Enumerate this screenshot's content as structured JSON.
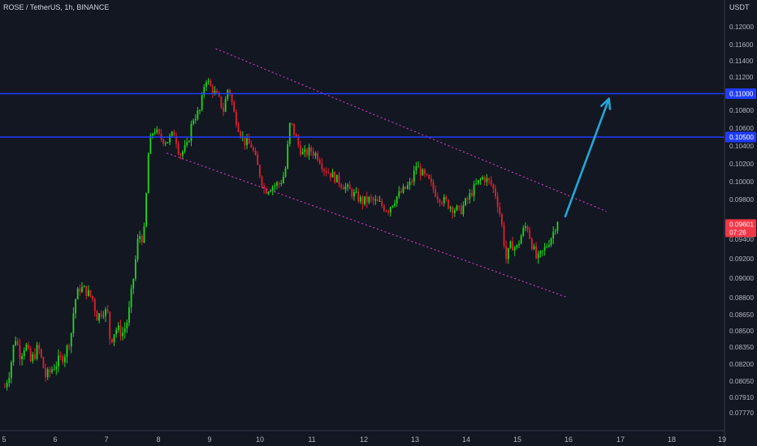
{
  "header": {
    "symbol_title": "ROSE / TetherUS, 1h, BINANCE"
  },
  "axis": {
    "currency": "USDT"
  },
  "colors": {
    "background": "#131722",
    "up": "#26a69a",
    "down": "#ef5350",
    "up_candle": "#22d61e",
    "down_candle": "#e0212e",
    "level_line": "#1f3cff",
    "channel": "#d63dc8",
    "arrow": "#22a7d6",
    "grid": "#2a2e39",
    "axis_text": "#b2b5be",
    "price_badge": "#f23645"
  },
  "chart_data": {
    "type": "candlestick",
    "title": "ROSE / TetherUS, 1h, BINANCE",
    "ylabel": "USDT",
    "x_ticks": [
      "5",
      "6",
      "7",
      "8",
      "9",
      "10",
      "11",
      "12",
      "13",
      "14",
      "15",
      "16",
      "17",
      "18",
      "19"
    ],
    "y_ticks": [
      "0.12000",
      "0.11600",
      "0.11400",
      "0.11200",
      "0.10800",
      "0.10600",
      "0.10400",
      "0.10200",
      "0.10000",
      "0.09800",
      "0.09400",
      "0.09200",
      "0.09000",
      "0.08800",
      "0.08650",
      "0.08500",
      "0.08350",
      "0.08200",
      "0.08050",
      "0.07910",
      "0.07770"
    ],
    "ylim": [
      0.0762,
      0.1215
    ],
    "grid": false,
    "levels": [
      {
        "label": "0.11000",
        "value": 0.11
      },
      {
        "label": "0.10500",
        "value": 0.105
      }
    ],
    "current_price": {
      "label": "0.09601",
      "countdown": "07:26",
      "value": 0.09601
    },
    "close_path": [
      [
        5.0,
        0.08
      ],
      [
        5.1,
        0.0815
      ],
      [
        5.2,
        0.0845
      ],
      [
        5.3,
        0.0828
      ],
      [
        5.4,
        0.0838
      ],
      [
        5.5,
        0.0822
      ],
      [
        5.65,
        0.0835
      ],
      [
        5.8,
        0.0808
      ],
      [
        5.95,
        0.0818
      ],
      [
        6.1,
        0.0825
      ],
      [
        6.2,
        0.0832
      ],
      [
        6.3,
        0.085
      ],
      [
        6.35,
        0.0875
      ],
      [
        6.45,
        0.089
      ],
      [
        6.55,
        0.0888
      ],
      [
        6.7,
        0.088
      ],
      [
        6.8,
        0.0862
      ],
      [
        6.9,
        0.087
      ],
      [
        7.0,
        0.0865
      ],
      [
        7.05,
        0.084
      ],
      [
        7.15,
        0.0852
      ],
      [
        7.3,
        0.0848
      ],
      [
        7.4,
        0.0862
      ],
      [
        7.5,
        0.09
      ],
      [
        7.6,
        0.0945
      ],
      [
        7.7,
        0.094
      ],
      [
        7.75,
        0.0985
      ],
      [
        7.8,
        0.104
      ],
      [
        7.9,
        0.106
      ],
      [
        8.0,
        0.105
      ],
      [
        8.15,
        0.1045
      ],
      [
        8.3,
        0.1055
      ],
      [
        8.4,
        0.103
      ],
      [
        8.55,
        0.104
      ],
      [
        8.65,
        0.107
      ],
      [
        8.8,
        0.108
      ],
      [
        8.9,
        0.112
      ],
      [
        9.0,
        0.1108
      ],
      [
        9.15,
        0.1095
      ],
      [
        9.25,
        0.108
      ],
      [
        9.35,
        0.111
      ],
      [
        9.45,
        0.1078
      ],
      [
        9.55,
        0.106
      ],
      [
        9.65,
        0.1045
      ],
      [
        9.8,
        0.104
      ],
      [
        9.95,
        0.101
      ],
      [
        10.05,
        0.099
      ],
      [
        10.2,
        0.0995
      ],
      [
        10.35,
        0.0998
      ],
      [
        10.45,
        0.101
      ],
      [
        10.55,
        0.1068
      ],
      [
        10.7,
        0.1042
      ],
      [
        10.8,
        0.103
      ],
      [
        10.95,
        0.1035
      ],
      [
        11.1,
        0.1028
      ],
      [
        11.2,
        0.1015
      ],
      [
        11.35,
        0.1008
      ],
      [
        11.5,
        0.1
      ],
      [
        11.6,
        0.0995
      ],
      [
        11.8,
        0.0985
      ],
      [
        11.95,
        0.0978
      ],
      [
        12.1,
        0.098
      ],
      [
        12.3,
        0.0975
      ],
      [
        12.45,
        0.097
      ],
      [
        12.6,
        0.0982
      ],
      [
        12.75,
        0.099
      ],
      [
        12.9,
        0.0998
      ],
      [
        13.0,
        0.1018
      ],
      [
        13.1,
        0.101
      ],
      [
        13.25,
        0.1
      ],
      [
        13.4,
        0.0985
      ],
      [
        13.55,
        0.0978
      ],
      [
        13.7,
        0.0972
      ],
      [
        13.85,
        0.0968
      ],
      [
        14.0,
        0.098
      ],
      [
        14.15,
        0.0995
      ],
      [
        14.3,
        0.1005
      ],
      [
        14.45,
        0.0998
      ],
      [
        14.55,
        0.0985
      ],
      [
        14.65,
        0.096
      ],
      [
        14.75,
        0.092
      ],
      [
        14.85,
        0.0935
      ],
      [
        14.95,
        0.093
      ],
      [
        15.05,
        0.0945
      ],
      [
        15.15,
        0.0955
      ],
      [
        15.25,
        0.0935
      ],
      [
        15.35,
        0.0918
      ],
      [
        15.5,
        0.093
      ],
      [
        15.65,
        0.0945
      ],
      [
        15.75,
        0.096
      ]
    ]
  }
}
